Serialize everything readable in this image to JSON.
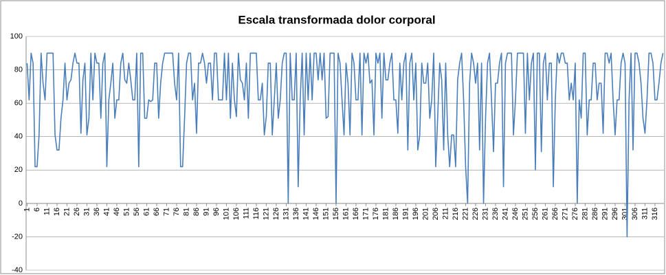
{
  "chart_data": {
    "type": "line",
    "title": "Escala transformada dolor corporal",
    "color": "#4a7ebb",
    "grid": true,
    "x": [
      1,
      2,
      3,
      4,
      5,
      6,
      7,
      8,
      9,
      10,
      11,
      12,
      13,
      14,
      15,
      16,
      17,
      18,
      19,
      20,
      21,
      22,
      23,
      24,
      25,
      26,
      27,
      28,
      29,
      30,
      31,
      32,
      33,
      34,
      35,
      36,
      37,
      38,
      39,
      40,
      41,
      42,
      43,
      44,
      45,
      46,
      47,
      48,
      49,
      50,
      51,
      52,
      53,
      54,
      55,
      56,
      57,
      58,
      59,
      60,
      61,
      62,
      63,
      64,
      65,
      66,
      67,
      68,
      69,
      70,
      71,
      72,
      73,
      74,
      75,
      76,
      77,
      78,
      79,
      80,
      81,
      82,
      83,
      84,
      85,
      86,
      87,
      88,
      89,
      90,
      91,
      92,
      93,
      94,
      95,
      96,
      97,
      98,
      99,
      100,
      101,
      102,
      103,
      104,
      105,
      106,
      107,
      108,
      109,
      110,
      111,
      112,
      113,
      114,
      115,
      116,
      117,
      118,
      119,
      120,
      121,
      122,
      123,
      124,
      125,
      126,
      127,
      128,
      129,
      130,
      131,
      132,
      133,
      134,
      135,
      136,
      137,
      138,
      139,
      140,
      141,
      142,
      143,
      144,
      145,
      146,
      147,
      148,
      149,
      150,
      151,
      152,
      153,
      154,
      155,
      156,
      157,
      158,
      159,
      160,
      161,
      162,
      163,
      164,
      165,
      166,
      167,
      168,
      169,
      170,
      171,
      172,
      173,
      174,
      175,
      176,
      177,
      178,
      179,
      180,
      181,
      182,
      183,
      184,
      185,
      186,
      187,
      188,
      189,
      190,
      191,
      192,
      193,
      194,
      195,
      196,
      197,
      198,
      199,
      200,
      201,
      202,
      203,
      204,
      205,
      206,
      207,
      208,
      209,
      210,
      211,
      212,
      213,
      214,
      215,
      216,
      217,
      218,
      219,
      220,
      221,
      222,
      223,
      224,
      225,
      226,
      227,
      228,
      229,
      230,
      231,
      232,
      233,
      234,
      235,
      236,
      237,
      238,
      239,
      240,
      241,
      242,
      243,
      244,
      245,
      246,
      247,
      248,
      249,
      250,
      251,
      252,
      253,
      254,
      255,
      256,
      257,
      258,
      259,
      260,
      261,
      262,
      263,
      264,
      265,
      266,
      267,
      268,
      269,
      270,
      271,
      272,
      273,
      274,
      275,
      276,
      277,
      278,
      279,
      280,
      281,
      282,
      283,
      284,
      285,
      286,
      287,
      288,
      289,
      290,
      291,
      292,
      293,
      294,
      295,
      296,
      297,
      298,
      299,
      300,
      301,
      302,
      303,
      304,
      305,
      306,
      307,
      308,
      309,
      310,
      311,
      312,
      313,
      314,
      315,
      316,
      317,
      318,
      319,
      320
    ],
    "values": [
      84,
      62,
      90,
      84,
      22,
      22,
      41,
      90,
      72,
      62,
      90,
      90,
      90,
      90,
      41,
      32,
      32,
      51,
      62,
      84,
      62,
      72,
      74,
      84,
      90,
      84,
      84,
      42,
      74,
      84,
      41,
      51,
      90,
      62,
      90,
      84,
      84,
      51,
      84,
      90,
      22,
      62,
      72,
      84,
      51,
      62,
      62,
      84,
      90,
      74,
      72,
      84,
      74,
      62,
      62,
      90,
      22,
      90,
      90,
      51,
      51,
      62,
      61,
      62,
      84,
      84,
      51,
      72,
      84,
      90,
      90,
      90,
      90,
      90,
      72,
      62,
      90,
      22,
      22,
      51,
      84,
      90,
      90,
      62,
      72,
      42,
      84,
      84,
      90,
      84,
      72,
      84,
      84,
      62,
      90,
      90,
      62,
      62,
      62,
      90,
      62,
      90,
      51,
      84,
      62,
      52,
      90,
      74,
      72,
      62,
      84,
      51,
      90,
      90,
      90,
      90,
      62,
      62,
      72,
      41,
      52,
      84,
      84,
      41,
      62,
      84,
      51,
      62,
      84,
      90,
      90,
      0,
      90,
      62,
      62,
      90,
      10,
      62,
      90,
      41,
      90,
      62,
      90,
      62,
      90,
      90,
      74,
      90,
      74,
      90,
      51,
      52,
      90,
      90,
      90,
      0,
      90,
      84,
      62,
      41,
      84,
      72,
      41,
      90,
      84,
      62,
      62,
      90,
      41,
      90,
      84,
      90,
      72,
      74,
      41,
      90,
      84,
      90,
      51,
      90,
      74,
      74,
      84,
      90,
      62,
      62,
      42,
      84,
      62,
      84,
      90,
      32,
      84,
      90,
      62,
      84,
      32,
      41,
      84,
      72,
      72,
      84,
      51,
      62,
      90,
      22,
      52,
      84,
      74,
      32,
      84,
      41,
      22,
      41,
      41,
      22,
      74,
      84,
      90,
      62,
      22,
      0,
      72,
      90,
      84,
      72,
      84,
      32,
      84,
      0,
      51,
      84,
      90,
      62,
      31,
      72,
      72,
      84,
      90,
      10,
      84,
      90,
      90,
      90,
      41,
      62,
      90,
      90,
      90,
      90,
      42,
      90,
      62,
      84,
      90,
      20,
      90,
      90,
      31,
      84,
      90,
      62,
      84,
      84,
      10,
      62,
      90,
      84,
      90,
      90,
      84,
      84,
      62,
      72,
      62,
      84,
      0,
      62,
      51,
      90,
      90,
      41,
      62,
      62,
      84,
      84,
      62,
      72,
      72,
      42,
      90,
      90,
      84,
      90,
      62,
      41,
      62,
      62,
      84,
      90,
      84,
      -20,
      62,
      90,
      32,
      90,
      90,
      84,
      72,
      51,
      42,
      62,
      90,
      90,
      84,
      62,
      62,
      72,
      84,
      90
    ],
    "xlim": [
      0.5,
      320.5
    ],
    "xticks": [
      1,
      6,
      11,
      16,
      21,
      26,
      31,
      36,
      41,
      46,
      51,
      56,
      61,
      66,
      71,
      76,
      81,
      86,
      91,
      96,
      101,
      106,
      111,
      116,
      121,
      126,
      131,
      136,
      141,
      146,
      151,
      156,
      161,
      166,
      171,
      176,
      181,
      186,
      191,
      196,
      201,
      206,
      211,
      216,
      221,
      226,
      231,
      236,
      241,
      246,
      251,
      256,
      261,
      266,
      271,
      276,
      281,
      286,
      291,
      296,
      301,
      306,
      311,
      316
    ],
    "ylim": [
      -40,
      100
    ],
    "yticks": [
      -40,
      -20,
      0,
      20,
      40,
      60,
      80,
      100
    ]
  }
}
